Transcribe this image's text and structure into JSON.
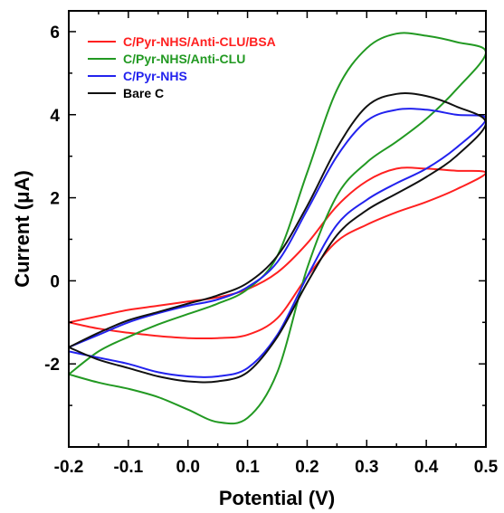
{
  "chart_data": {
    "type": "line",
    "title": "",
    "xlabel": "Potential (V)",
    "ylabel": "Current (μA)",
    "xlim": [
      -0.2,
      0.5
    ],
    "ylim": [
      -4.0,
      6.5
    ],
    "x_ticks": [
      -0.2,
      -0.1,
      0.0,
      0.1,
      0.2,
      0.3,
      0.4,
      0.5
    ],
    "x_tick_labels": [
      "-0.2",
      "-0.1",
      "0.0",
      "0.1",
      "0.2",
      "0.3",
      "0.4",
      "0.5"
    ],
    "y_ticks": [
      -2,
      0,
      2,
      4,
      6
    ],
    "y_tick_labels": [
      "-2",
      "0",
      "2",
      "4",
      "6"
    ],
    "grid": false,
    "legend_position": "top-left",
    "series": [
      {
        "name": "C/Pyr-NHS/Anti-CLU/BSA",
        "color": "#ff2020",
        "points": [
          [
            -0.2,
            -1.0
          ],
          [
            -0.15,
            -0.85
          ],
          [
            -0.1,
            -0.7
          ],
          [
            -0.05,
            -0.6
          ],
          [
            0.0,
            -0.5
          ],
          [
            0.05,
            -0.4
          ],
          [
            0.1,
            -0.2
          ],
          [
            0.15,
            0.2
          ],
          [
            0.2,
            0.9
          ],
          [
            0.25,
            1.8
          ],
          [
            0.3,
            2.4
          ],
          [
            0.35,
            2.7
          ],
          [
            0.4,
            2.7
          ],
          [
            0.45,
            2.65
          ],
          [
            0.5,
            2.6
          ],
          [
            0.45,
            2.2
          ],
          [
            0.4,
            1.9
          ],
          [
            0.35,
            1.65
          ],
          [
            0.3,
            1.35
          ],
          [
            0.25,
            0.95
          ],
          [
            0.2,
            0.1
          ],
          [
            0.15,
            -0.9
          ],
          [
            0.1,
            -1.3
          ],
          [
            0.05,
            -1.38
          ],
          [
            0.0,
            -1.38
          ],
          [
            -0.05,
            -1.33
          ],
          [
            -0.1,
            -1.25
          ],
          [
            -0.15,
            -1.15
          ],
          [
            -0.2,
            -1.0
          ]
        ]
      },
      {
        "name": "C/Pyr-NHS/Anti-CLU",
        "color": "#229922",
        "points": [
          [
            -0.2,
            -2.25
          ],
          [
            -0.15,
            -1.7
          ],
          [
            -0.1,
            -1.35
          ],
          [
            -0.05,
            -1.05
          ],
          [
            0.0,
            -0.8
          ],
          [
            0.05,
            -0.55
          ],
          [
            0.1,
            -0.2
          ],
          [
            0.15,
            0.6
          ],
          [
            0.2,
            2.6
          ],
          [
            0.25,
            4.6
          ],
          [
            0.3,
            5.6
          ],
          [
            0.35,
            5.95
          ],
          [
            0.4,
            5.9
          ],
          [
            0.45,
            5.75
          ],
          [
            0.5,
            5.5
          ],
          [
            0.45,
            4.6
          ],
          [
            0.4,
            3.9
          ],
          [
            0.35,
            3.35
          ],
          [
            0.3,
            2.85
          ],
          [
            0.25,
            2.05
          ],
          [
            0.2,
            0.3
          ],
          [
            0.15,
            -2.2
          ],
          [
            0.1,
            -3.3
          ],
          [
            0.05,
            -3.4
          ],
          [
            0.0,
            -3.1
          ],
          [
            -0.05,
            -2.8
          ],
          [
            -0.1,
            -2.6
          ],
          [
            -0.15,
            -2.45
          ],
          [
            -0.2,
            -2.25
          ]
        ]
      },
      {
        "name": "C/Pyr-NHS",
        "color": "#2222ee",
        "points": [
          [
            -0.2,
            -1.6
          ],
          [
            -0.15,
            -1.3
          ],
          [
            -0.1,
            -1.0
          ],
          [
            -0.05,
            -0.78
          ],
          [
            0.0,
            -0.6
          ],
          [
            0.05,
            -0.45
          ],
          [
            0.1,
            -0.15
          ],
          [
            0.15,
            0.45
          ],
          [
            0.2,
            1.7
          ],
          [
            0.25,
            3.0
          ],
          [
            0.3,
            3.85
          ],
          [
            0.35,
            4.12
          ],
          [
            0.4,
            4.12
          ],
          [
            0.45,
            4.0
          ],
          [
            0.5,
            3.9
          ],
          [
            0.45,
            3.2
          ],
          [
            0.4,
            2.7
          ],
          [
            0.35,
            2.35
          ],
          [
            0.3,
            1.95
          ],
          [
            0.25,
            1.35
          ],
          [
            0.2,
            0.1
          ],
          [
            0.15,
            -1.3
          ],
          [
            0.1,
            -2.1
          ],
          [
            0.05,
            -2.3
          ],
          [
            0.0,
            -2.3
          ],
          [
            -0.05,
            -2.2
          ],
          [
            -0.1,
            -2.0
          ],
          [
            -0.15,
            -1.85
          ],
          [
            -0.2,
            -1.7
          ]
        ]
      },
      {
        "name": "Bare C",
        "color": "#111111",
        "points": [
          [
            -0.2,
            -1.6
          ],
          [
            -0.15,
            -1.25
          ],
          [
            -0.1,
            -0.95
          ],
          [
            -0.05,
            -0.75
          ],
          [
            0.0,
            -0.55
          ],
          [
            0.05,
            -0.35
          ],
          [
            0.1,
            -0.05
          ],
          [
            0.15,
            0.6
          ],
          [
            0.2,
            1.8
          ],
          [
            0.25,
            3.2
          ],
          [
            0.3,
            4.2
          ],
          [
            0.35,
            4.5
          ],
          [
            0.4,
            4.45
          ],
          [
            0.45,
            4.2
          ],
          [
            0.5,
            3.8
          ],
          [
            0.45,
            3.0
          ],
          [
            0.4,
            2.5
          ],
          [
            0.35,
            2.1
          ],
          [
            0.3,
            1.7
          ],
          [
            0.25,
            1.1
          ],
          [
            0.2,
            -0.05
          ],
          [
            0.15,
            -1.35
          ],
          [
            0.1,
            -2.2
          ],
          [
            0.05,
            -2.42
          ],
          [
            0.0,
            -2.42
          ],
          [
            -0.05,
            -2.3
          ],
          [
            -0.1,
            -2.1
          ],
          [
            -0.15,
            -1.9
          ],
          [
            -0.2,
            -1.6
          ]
        ]
      }
    ]
  }
}
